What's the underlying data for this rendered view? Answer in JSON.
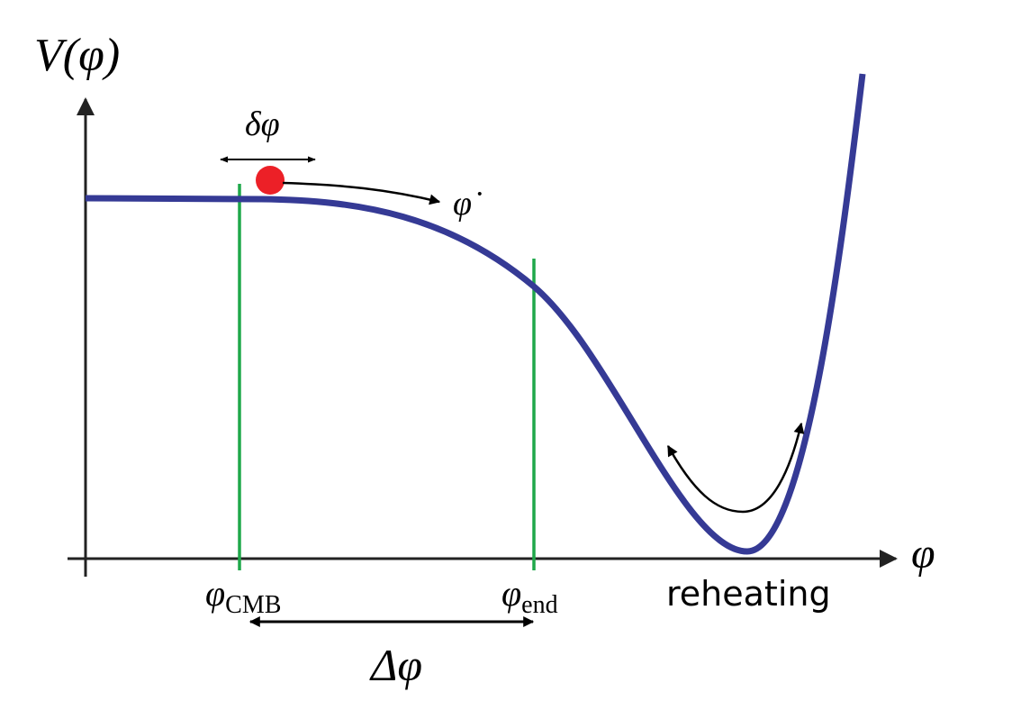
{
  "labels": {
    "potential": "V(φ)",
    "fluctuation": "δφ",
    "velocity": "φ̇",
    "phi_cmb": {
      "symbol": "φ",
      "subscript": "CMB"
    },
    "phi_end": {
      "symbol": "φ",
      "subscript": "end"
    },
    "reheating": "reheating",
    "delta_phi": "Δφ",
    "x_axis": "φ"
  }
}
